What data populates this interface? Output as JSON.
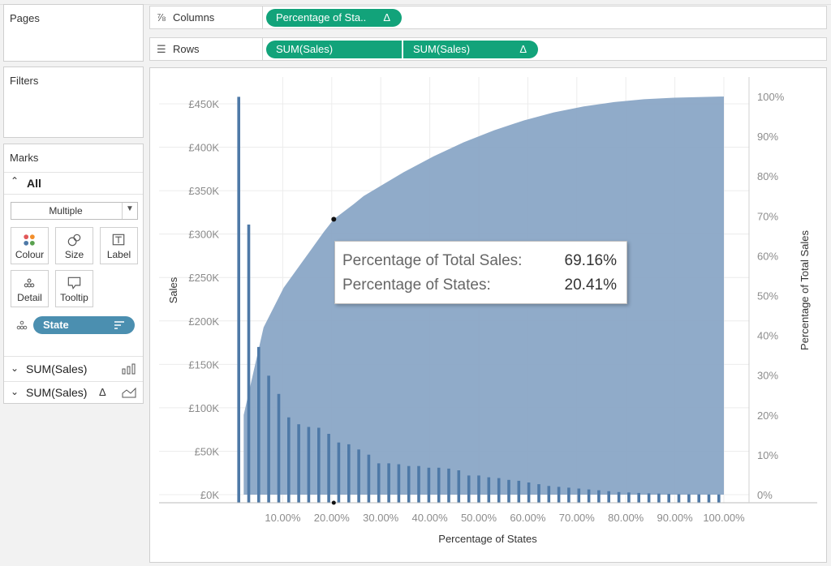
{
  "pages_panel": {
    "title": "Pages"
  },
  "filters_panel": {
    "title": "Filters"
  },
  "marks_panel": {
    "title": "Marks",
    "all_label": "All",
    "mark_type": "Multiple",
    "cards": [
      "Colour",
      "Size",
      "Label",
      "Detail",
      "Tooltip"
    ],
    "detail_pill": "State",
    "sections": [
      {
        "label": "SUM(Sales)",
        "icon": "bar-chart-icon"
      },
      {
        "label": "SUM(Sales)",
        "delta": "Δ",
        "icon": "area-chart-icon"
      }
    ]
  },
  "columns_shelf": {
    "label": "Columns",
    "pill": "Percentage of Sta..",
    "delta": "Δ"
  },
  "rows_shelf": {
    "label": "Rows",
    "pills": [
      {
        "text": "SUM(Sales)"
      },
      {
        "text": "SUM(Sales)",
        "delta": "Δ"
      }
    ]
  },
  "colors": {
    "pill_green": "#12a37a",
    "pill_blue": "#4b8fb0",
    "bar": "#4e79a7",
    "area": "#8aa6c6"
  },
  "chart_data": {
    "type": "bar+area",
    "xlabel": "Percentage of States",
    "ylabel": "Sales",
    "y2label": "Percentage of Total Sales",
    "x_ticks": [
      "10.00%",
      "20.00%",
      "30.00%",
      "40.00%",
      "50.00%",
      "60.00%",
      "70.00%",
      "80.00%",
      "90.00%",
      "100.00%"
    ],
    "y_ticks": [
      "£0K",
      "£50K",
      "£100K",
      "£150K",
      "£200K",
      "£250K",
      "£300K",
      "£350K",
      "£400K",
      "£450K"
    ],
    "y2_ticks": [
      "0%",
      "10%",
      "20%",
      "30%",
      "40%",
      "50%",
      "60%",
      "70%",
      "80%",
      "90%",
      "100%"
    ],
    "ylim": [
      0,
      450000
    ],
    "y2lim": [
      0,
      100
    ],
    "bar_values": [
      458000,
      311000,
      170000,
      137000,
      116000,
      89000,
      81000,
      78000,
      77000,
      70000,
      60000,
      58000,
      52000,
      46000,
      36000,
      36000,
      35000,
      33000,
      33000,
      31000,
      31000,
      30000,
      28000,
      22000,
      22000,
      20000,
      19000,
      17000,
      16000,
      14000,
      12000,
      10000,
      9000,
      8000,
      7000,
      6000,
      5000,
      4000,
      3000,
      2500,
      2000,
      1500,
      1200,
      800,
      600,
      500,
      400,
      300,
      200
    ],
    "cumulative_pct_points": [
      [
        2.04,
        20
      ],
      [
        6.1,
        42
      ],
      [
        10.2,
        52
      ],
      [
        14.3,
        59
      ],
      [
        18.4,
        66
      ],
      [
        20.41,
        69.16
      ],
      [
        24.5,
        73
      ],
      [
        26.5,
        75
      ],
      [
        30.6,
        78
      ],
      [
        34.7,
        81
      ],
      [
        40.8,
        85
      ],
      [
        46.9,
        88.5
      ],
      [
        53.1,
        91.5
      ],
      [
        59.2,
        94
      ],
      [
        65.3,
        96
      ],
      [
        71.4,
        97.5
      ],
      [
        77.6,
        98.6
      ],
      [
        83.7,
        99.3
      ],
      [
        89.8,
        99.7
      ],
      [
        100,
        100
      ]
    ],
    "highlight": {
      "x_pct": 20.41,
      "y_pct": 69.16
    }
  },
  "tooltip": {
    "rows": [
      {
        "label": "Percentage of Total Sales:",
        "value": "69.16%"
      },
      {
        "label": "Percentage of States:",
        "value": "20.41%"
      }
    ]
  }
}
